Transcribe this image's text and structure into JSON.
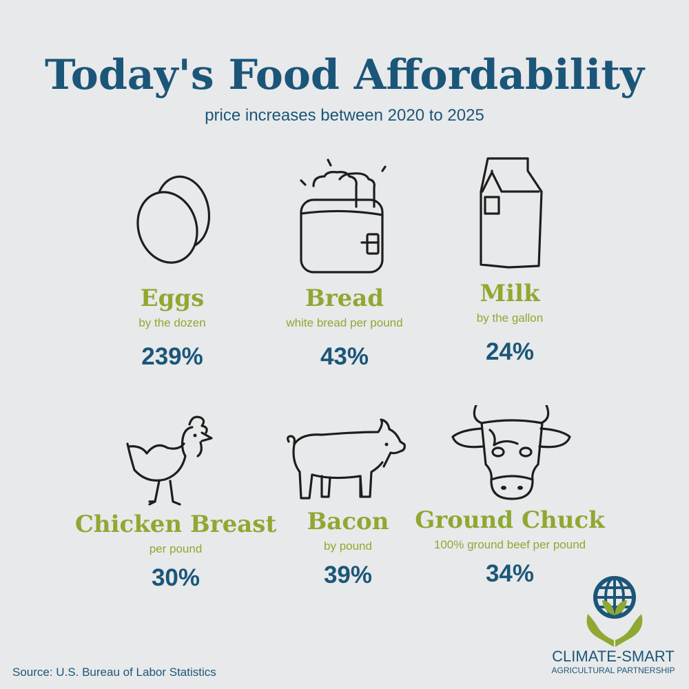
{
  "header": {
    "title": "Today's Food Affordability",
    "subtitle": "price increases between 2020 to 2025"
  },
  "items": [
    {
      "name": "Eggs",
      "unit": "by the dozen",
      "increase": "239%",
      "icon": "eggs-icon"
    },
    {
      "name": "Bread",
      "unit": "white bread per pound",
      "increase": "43%",
      "icon": "toaster-icon"
    },
    {
      "name": "Milk",
      "unit": "by the gallon",
      "increase": "24%",
      "icon": "milk-carton-icon"
    },
    {
      "name": "Chicken Breast",
      "unit": "per pound",
      "increase": "30%",
      "icon": "chicken-icon"
    },
    {
      "name": "Bacon",
      "unit": "by pound",
      "increase": "39%",
      "icon": "pig-icon"
    },
    {
      "name": "Ground Chuck",
      "unit": "100% ground beef per pound",
      "increase": "34%",
      "icon": "cow-icon"
    }
  ],
  "footer": {
    "source": "Source: U.S. Bureau of Labor Statistics",
    "org_line1": "CLIMATE-SMART",
    "org_line2": "AGRICULTURAL PARTNERSHIP"
  },
  "colors": {
    "background": "#e8e9ea",
    "navy": "#1b5679",
    "green": "#8ea832",
    "line": "#1e1e1e"
  }
}
